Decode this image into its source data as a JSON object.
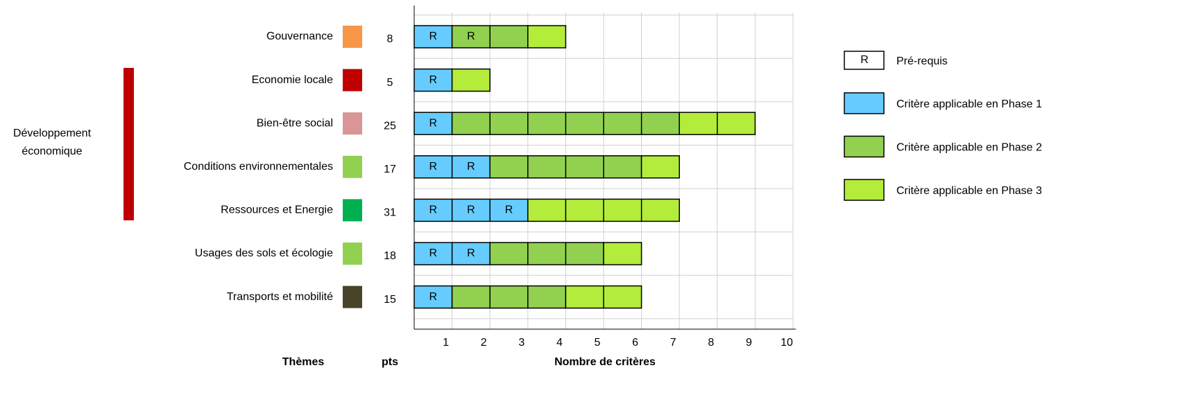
{
  "chart_data": {
    "type": "unit-bar",
    "categories": [
      "Gouvernance",
      "Economie locale",
      "Bien-être social",
      "Conditions environnementales",
      "Ressources et Energie",
      "Usages des sols et écologie",
      "Transports et mobilité"
    ],
    "category_colors": [
      "#f79646",
      "#c00000",
      "#d99694",
      "#92d050",
      "#00b050",
      "#92d050",
      "#494429"
    ],
    "points": [
      8,
      5,
      25,
      17,
      31,
      18,
      15
    ],
    "series": [
      {
        "name": "Critère applicable en Phase 1",
        "color": "#66ccff",
        "values": [
          1,
          1,
          1,
          2,
          3,
          2,
          1
        ]
      },
      {
        "name": "Critère applicable en Phase 2",
        "color": "#92d050",
        "values": [
          2,
          0,
          6,
          4,
          0,
          3,
          3
        ]
      },
      {
        "name": "Critère applicable en Phase 3",
        "color": "#b3ec3a",
        "values": [
          1,
          1,
          2,
          1,
          4,
          1,
          2
        ]
      }
    ],
    "prerequisites": [
      2,
      1,
      1,
      2,
      3,
      2,
      1
    ],
    "prerequisite_label": "R",
    "prerequisite_legend": "Pré-requis",
    "group_label": "Développement économique",
    "group_color": "#c00000",
    "xlabel": "Nombre de critères",
    "themes_label": "Thèmes",
    "points_label": "pts",
    "xlim": [
      0,
      10
    ],
    "xticks": [
      1,
      2,
      3,
      4,
      5,
      6,
      7,
      8,
      9,
      10
    ],
    "grid": true
  }
}
